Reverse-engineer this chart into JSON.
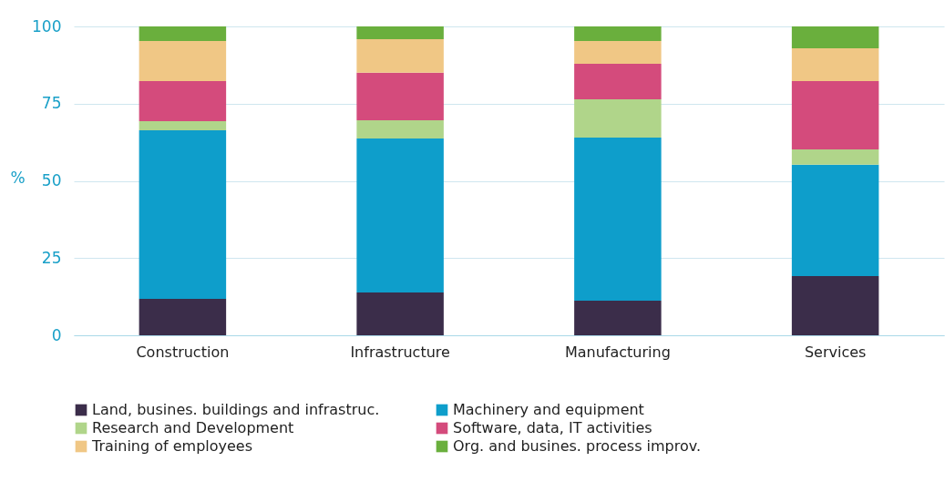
{
  "chart_data": {
    "type": "bar",
    "stacked": true,
    "ylabel": "%",
    "categories": [
      "Construction",
      "Infrastructure",
      "Manufacturing",
      "Services"
    ],
    "series": [
      {
        "name": "Land, busines. buildings and infrastruc.",
        "color": "#3b2d4a",
        "values": [
          11.8,
          13.9,
          11.2,
          19.2
        ]
      },
      {
        "name": "Machinery and equipment",
        "color": "#0e9ecb",
        "values": [
          54.6,
          49.8,
          52.8,
          36.0
        ]
      },
      {
        "name": "Research and Development",
        "color": "#b0d58a",
        "values": [
          2.9,
          5.9,
          12.4,
          5.0
        ]
      },
      {
        "name": "Software, data, IT activities",
        "color": "#d44b7c",
        "values": [
          13.0,
          15.4,
          11.5,
          22.1
        ]
      },
      {
        "name": "Training of employees",
        "color": "#f0c785",
        "values": [
          13.0,
          10.9,
          7.4,
          10.6
        ]
      },
      {
        "name": "Org. and busines. process improv.",
        "color": "#6aaf3d",
        "values": [
          4.7,
          4.1,
          4.7,
          7.1
        ]
      }
    ],
    "ylim": [
      0,
      100
    ],
    "yticks": [
      0,
      25,
      50,
      75,
      100
    ],
    "grid": "y",
    "legend": "bottom"
  }
}
